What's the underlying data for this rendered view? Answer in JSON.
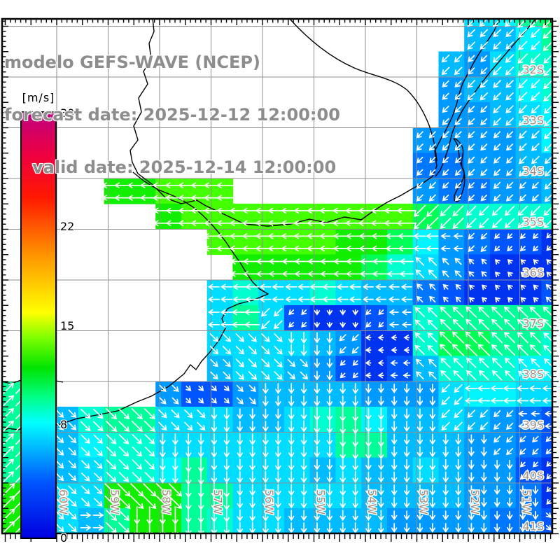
{
  "title": {
    "line1": "modelo GEFS-WAVE (NCEP)",
    "line2": "forecast date: 2025-12-12 12:00:00",
    "line3": "valid date: 2025-12-14 12:00:00"
  },
  "colorbar": {
    "unit": "[m/s]",
    "min": 0,
    "max": 30,
    "tick_values": [
      30,
      22,
      15,
      8,
      0
    ],
    "gradient_stops": [
      [
        "0%",
        "#0000e0"
      ],
      [
        "13%",
        "#0055ff"
      ],
      [
        "27%",
        "#00ffff"
      ],
      [
        "33%",
        "#00ff88"
      ],
      [
        "40%",
        "#00e400"
      ],
      [
        "47%",
        "#7dff00"
      ],
      [
        "53%",
        "#ffff00"
      ],
      [
        "67%",
        "#ff9000"
      ],
      [
        "80%",
        "#ff1800"
      ],
      [
        "90%",
        "#ee0040"
      ],
      [
        "100%",
        "#c00080"
      ]
    ]
  },
  "map": {
    "lat_labels": [
      "32S",
      "33S",
      "34S",
      "35S",
      "36S",
      "37S",
      "38S",
      "39S",
      "40S",
      "41S"
    ],
    "lon_labels": [
      "60W",
      "59W",
      "58W",
      "57W",
      "56W",
      "55W",
      "54W",
      "53W",
      "52W",
      "51W"
    ],
    "grid_color": "#8f8f8f",
    "coast_color": "#000000",
    "label_color": "#a39084",
    "arrow_color": "#ffffff"
  },
  "field": {
    "note": "wind speed m/s on 0.5 deg cells, rows north to south (30.9S-41S), cols west to east (61W-50.3W)",
    "palette": {
      "1": "#0033f0",
      "2": "#0055ff",
      "3": "#0077ff",
      "4": "#0099ff",
      "5": "#00bbff",
      "6": "#00ddff",
      "7": "#00f5ff",
      "8": "#00ffd0",
      "9": "#00ff99",
      "a": "#00ff55",
      "b": "#11ee00",
      "c": "#44ff00",
      "d": "#88ff00"
    },
    "speeds": {
      "1": 3,
      "2": 4,
      "3": 5,
      "4": 5.5,
      "5": 6.5,
      "6": 7,
      "7": 7.5,
      "8": 8.5,
      "9": 9.5,
      "a": 10.5,
      "b": 11.5,
      "c": 12.5,
      "d": 13.5
    },
    "rows": [
      "..................679a",
      "..................5579",
      ".................54688",
      ".................45578",
      ".................44567",
      "................444457",
      "................334455",
      "....bbccc.......433445",
      "......bccccccccca98888",
      "........cccccbba743221",
      ".........bbbbba8642111",
      "........68668655321112",
      "........69621124899999",
      "........666654118aa998",
      "........56654212588877",
      "9.....4224555544467766",
      "9.58996665568975565432",
      "9.57886666666995554432",
      "9.56887966665655654421",
      "b.66bbb996666655554431",
      "b.659bb986655554444332"
    ],
    "dirs": [
      "..................6666",
      "..................6666",
      ".................66666",
      ".................66666",
      ".................66666",
      "................666666",
      "................666666",
      "....77777.......666666",
      "......7777777777666666",
      "........77777777776666",
      ".........7777777888888",
      "........77777777888888",
      "........77665567888888",
      "........44455677888888",
      "........44445677888888",
      "2.....4444555555567777",
      "2.44444455555555566677",
      "2.44445555555555555666",
      "2.44445555555555555566",
      "2.44444555555555555556",
      "2.43455555555555555554"
    ],
    "dir_key": {
      "1": "N",
      "2": "NE",
      "3": "E",
      "4": "SE",
      "5": "S",
      "6": "SW",
      "7": "W",
      "8": "NW"
    }
  }
}
